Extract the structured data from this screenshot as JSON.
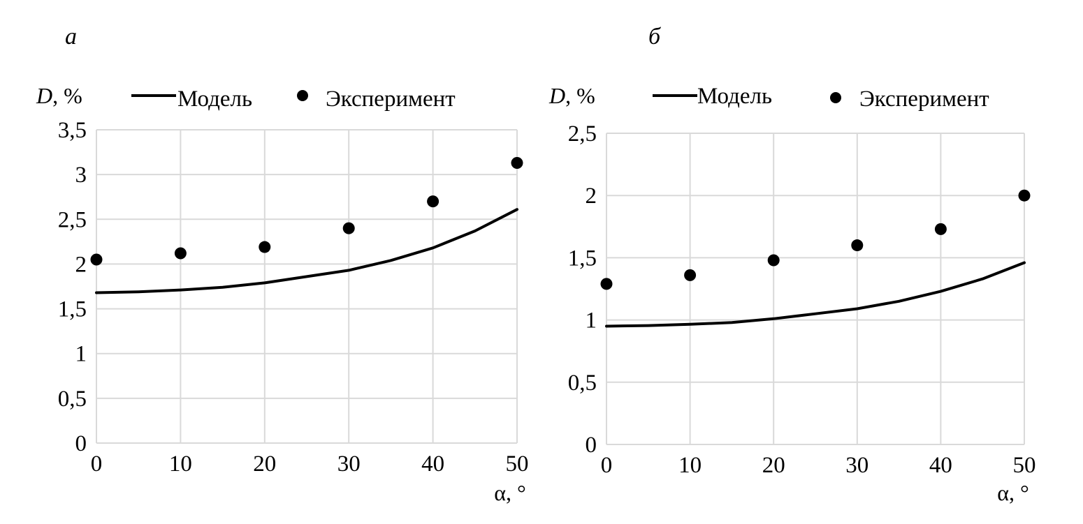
{
  "chart_data": [
    {
      "type": "line",
      "panel_label": "а",
      "ylabel_symbol": "D",
      "ylabel_unit": ", %",
      "xlabel": "α, °",
      "xlim": [
        0,
        50
      ],
      "ylim": [
        0,
        3.5
      ],
      "x_ticks": [
        "0",
        "10",
        "20",
        "30",
        "40",
        "50"
      ],
      "y_ticks": [
        "0",
        "0,5",
        "1",
        "1,5",
        "2",
        "2,5",
        "3",
        "3,5"
      ],
      "grid": true,
      "legend_position": "top",
      "series": [
        {
          "name": "Модель",
          "kind": "line",
          "color": "#000000",
          "x": [
            0,
            5,
            10,
            15,
            20,
            25,
            30,
            35,
            40,
            45,
            50
          ],
          "y": [
            1.68,
            1.69,
            1.71,
            1.74,
            1.79,
            1.86,
            1.93,
            2.04,
            2.18,
            2.37,
            2.61
          ]
        },
        {
          "name": "Эксперимент",
          "kind": "scatter",
          "color": "#000000",
          "x": [
            0,
            10,
            20,
            30,
            40,
            50
          ],
          "y": [
            2.05,
            2.12,
            2.19,
            2.4,
            2.7,
            3.13
          ]
        }
      ]
    },
    {
      "type": "line",
      "panel_label": "б",
      "ylabel_symbol": "D",
      "ylabel_unit": ", %",
      "xlabel": "α, °",
      "xlim": [
        0,
        50
      ],
      "ylim": [
        0,
        2.5
      ],
      "x_ticks": [
        "0",
        "10",
        "20",
        "30",
        "40",
        "50"
      ],
      "y_ticks": [
        "0",
        "0,5",
        "1",
        "1,5",
        "2",
        "2,5"
      ],
      "grid": true,
      "legend_position": "top",
      "series": [
        {
          "name": "Модель",
          "kind": "line",
          "color": "#000000",
          "x": [
            0,
            5,
            10,
            15,
            20,
            25,
            30,
            35,
            40,
            45,
            50
          ],
          "y": [
            0.95,
            0.955,
            0.965,
            0.98,
            1.01,
            1.05,
            1.09,
            1.15,
            1.23,
            1.33,
            1.46
          ]
        },
        {
          "name": "Эксперимент",
          "kind": "scatter",
          "color": "#000000",
          "x": [
            0,
            10,
            20,
            30,
            40,
            50
          ],
          "y": [
            1.29,
            1.36,
            1.48,
            1.6,
            1.73,
            2.0
          ]
        }
      ]
    }
  ]
}
